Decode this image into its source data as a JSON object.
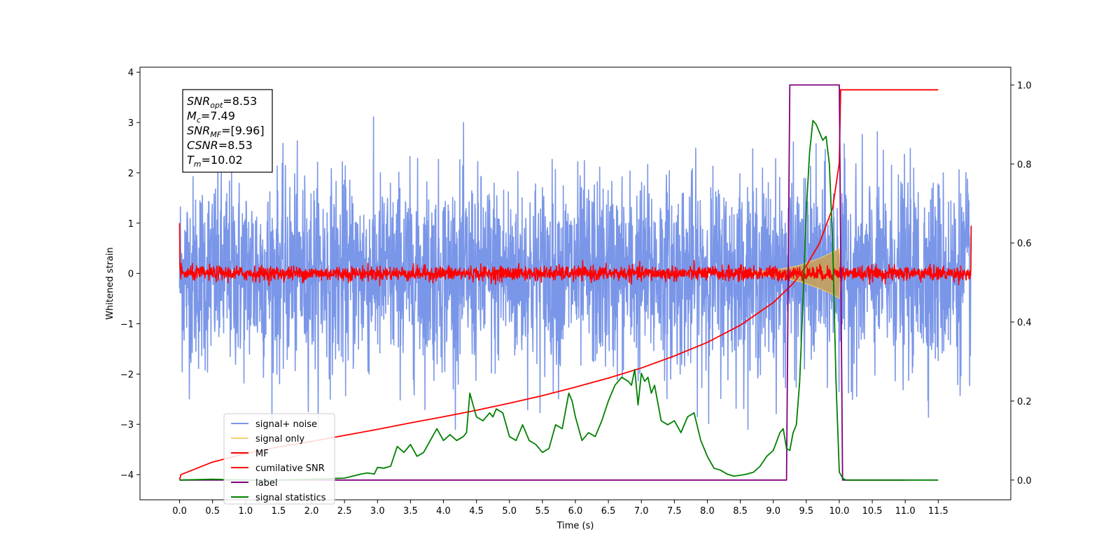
{
  "chart_data": {
    "type": "line",
    "xlabel": "Time (s)",
    "ylabel": "Whitened strain",
    "xlim": [
      -0.6,
      12.6
    ],
    "ylim": [
      -4.5,
      4.1
    ],
    "y2lim": [
      -0.05,
      1.045
    ],
    "xticks": [
      "0.0",
      "0.5",
      "1.0",
      "1.5",
      "2.0",
      "2.5",
      "3.0",
      "3.5",
      "4.0",
      "4.5",
      "5.0",
      "5.5",
      "6.0",
      "6.5",
      "7.0",
      "7.5",
      "8.0",
      "8.5",
      "9.0",
      "9.5",
      "10.0",
      "10.5",
      "11.0",
      "11.5"
    ],
    "xtick_values": [
      0,
      0.5,
      1,
      1.5,
      2,
      2.5,
      3,
      3.5,
      4,
      4.5,
      5,
      5.5,
      6,
      6.5,
      7,
      7.5,
      8,
      8.5,
      9,
      9.5,
      10,
      10.5,
      11,
      11.5
    ],
    "yticks": [
      "4",
      "3",
      "2",
      "1",
      "0",
      "−1",
      "−2",
      "−3",
      "−4"
    ],
    "ytick_values": [
      4,
      3,
      2,
      1,
      0,
      -1,
      -2,
      -3,
      -4
    ],
    "y2ticks": [
      "1.0",
      "0.8",
      "0.6",
      "0.4",
      "0.2",
      "0.0"
    ],
    "y2tick_values": [
      1.0,
      0.8,
      0.6,
      0.4,
      0.2,
      0.0
    ],
    "annotation": {
      "lines": [
        {
          "main": "SNR",
          "sub": "opt",
          "value": "=8.53"
        },
        {
          "main": "M",
          "sub": "c",
          "value": "=7.49"
        },
        {
          "main": "SNR",
          "sub": "MF",
          "value": "=[9.96]"
        },
        {
          "main": "CSNR",
          "sub": "",
          "value": "=8.53"
        },
        {
          "main": "T",
          "sub": "m",
          "value": "=10.02"
        }
      ]
    },
    "legend": {
      "placement": "lower-left",
      "entries": [
        {
          "label": "signal+ noise",
          "color": "#7a96e8"
        },
        {
          "label": "signal only",
          "color": "#f5cf7a"
        },
        {
          "label": "MF",
          "color": "#ff0000"
        },
        {
          "label": "cumilative SNR",
          "color": "#ff0000"
        },
        {
          "label": "label",
          "color": "#800080"
        },
        {
          "label": "signal statistics",
          "color": "#008000"
        }
      ]
    },
    "series": [
      {
        "name": "signal+ noise",
        "axis": "left",
        "color": "#7a96e8",
        "description_stats": {
          "x_range": [
            0,
            12.0
          ],
          "typical_amplitude": 1.0,
          "max": 3.3,
          "min": -3.1
        }
      },
      {
        "name": "signal only",
        "axis": "left",
        "color": "#f5cf7a",
        "envelope": {
          "x": [
            8.6,
            9.0,
            9.4,
            9.7,
            9.9,
            10.0,
            10.02
          ],
          "amp": [
            0.02,
            0.06,
            0.16,
            0.3,
            0.42,
            0.5,
            0.0
          ]
        }
      },
      {
        "name": "MF",
        "axis": "left",
        "color": "#ff0000",
        "x_range": [
          0,
          12.0
        ],
        "noise_amplitude": 0.13,
        "edge_values": [
          1.0,
          0.95
        ]
      },
      {
        "name": "cumilative SNR",
        "axis": "left",
        "color": "#ff0000",
        "x": [
          0,
          0.02,
          0.5,
          1.0,
          1.5,
          2.0,
          2.5,
          3.0,
          3.5,
          4.0,
          4.5,
          5.0,
          5.5,
          6.0,
          6.5,
          7.0,
          7.5,
          8.0,
          8.5,
          9.0,
          9.3,
          9.5,
          9.7,
          9.9,
          10.0,
          10.02,
          11.0,
          11.5
        ],
        "y": [
          -4.1,
          -4.0,
          -3.75,
          -3.58,
          -3.45,
          -3.34,
          -3.22,
          -3.1,
          -2.97,
          -2.85,
          -2.72,
          -2.58,
          -2.43,
          -2.26,
          -2.08,
          -1.88,
          -1.64,
          -1.37,
          -1.03,
          -0.58,
          -0.2,
          0.15,
          0.6,
          1.3,
          2.2,
          3.65,
          3.65,
          3.65
        ]
      },
      {
        "name": "label",
        "axis": "right",
        "color": "#800080",
        "x": [
          0,
          9.2,
          9.25,
          10.0,
          10.05,
          11.0
        ],
        "y": [
          0,
          0,
          1,
          1,
          0,
          0
        ]
      },
      {
        "name": "signal statistics",
        "axis": "right",
        "color": "#008000",
        "x": [
          0,
          0.5,
          1.0,
          1.5,
          2.0,
          2.5,
          2.75,
          2.85,
          2.95,
          3.0,
          3.1,
          3.2,
          3.3,
          3.4,
          3.5,
          3.6,
          3.7,
          3.8,
          3.9,
          4.0,
          4.1,
          4.2,
          4.3,
          4.35,
          4.4,
          4.5,
          4.6,
          4.7,
          4.75,
          4.8,
          4.9,
          5.0,
          5.1,
          5.2,
          5.3,
          5.4,
          5.5,
          5.6,
          5.7,
          5.8,
          5.9,
          5.95,
          6.0,
          6.1,
          6.2,
          6.3,
          6.4,
          6.5,
          6.6,
          6.7,
          6.8,
          6.85,
          6.9,
          6.95,
          7.0,
          7.05,
          7.1,
          7.15,
          7.2,
          7.3,
          7.4,
          7.5,
          7.6,
          7.7,
          7.8,
          7.9,
          8.0,
          8.1,
          8.2,
          8.3,
          8.4,
          8.5,
          8.6,
          8.7,
          8.8,
          8.9,
          9.0,
          9.1,
          9.15,
          9.2,
          9.25,
          9.3,
          9.35,
          9.4,
          9.45,
          9.5,
          9.55,
          9.6,
          9.65,
          9.7,
          9.75,
          9.8,
          9.85,
          9.9,
          9.95,
          10.0,
          10.05,
          10.1,
          10.5,
          11.0,
          11.5
        ],
        "y": [
          0,
          0.002,
          0.0,
          0.0,
          0.002,
          0.005,
          0.015,
          0.018,
          0.015,
          0.032,
          0.03,
          0.035,
          0.085,
          0.07,
          0.09,
          0.06,
          0.07,
          0.1,
          0.13,
          0.1,
          0.115,
          0.1,
          0.11,
          0.12,
          0.22,
          0.16,
          0.15,
          0.17,
          0.16,
          0.18,
          0.17,
          0.11,
          0.1,
          0.14,
          0.1,
          0.09,
          0.07,
          0.08,
          0.14,
          0.13,
          0.22,
          0.2,
          0.16,
          0.1,
          0.12,
          0.11,
          0.15,
          0.2,
          0.24,
          0.26,
          0.25,
          0.24,
          0.28,
          0.19,
          0.27,
          0.25,
          0.26,
          0.22,
          0.24,
          0.15,
          0.14,
          0.15,
          0.12,
          0.16,
          0.17,
          0.1,
          0.06,
          0.03,
          0.025,
          0.015,
          0.01,
          0.012,
          0.015,
          0.02,
          0.035,
          0.06,
          0.075,
          0.12,
          0.13,
          0.08,
          0.075,
          0.12,
          0.14,
          0.25,
          0.45,
          0.68,
          0.83,
          0.91,
          0.9,
          0.88,
          0.86,
          0.87,
          0.8,
          0.6,
          0.25,
          0.02,
          0.005,
          0.0,
          0.0,
          0.0,
          0.0
        ]
      }
    ]
  }
}
